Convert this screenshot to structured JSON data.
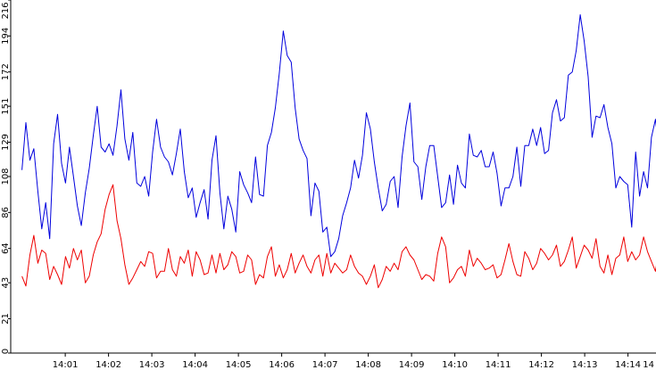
{
  "chart_data": {
    "type": "line",
    "grid": false,
    "legend": "none",
    "ylim": [
      0,
      216
    ],
    "y_ticks": [
      "0",
      "21",
      "43",
      "64",
      "86",
      "108",
      "129",
      "151",
      "172",
      "194",
      "216"
    ],
    "x_ticks": [
      "14:01",
      "14:02",
      "14:03",
      "14:04",
      "14:05",
      "14:06",
      "14:07",
      "14:08",
      "14:09",
      "14:10",
      "14:11",
      "14:12",
      "14:13",
      "14:14",
      "14"
    ],
    "series": [
      {
        "color": "#0000dd",
        "x_range_min": [
          0.0,
          15.0
        ],
        "values": [
          112,
          141,
          118,
          125,
          99,
          76,
          92,
          70,
          128,
          146,
          116,
          104,
          126,
          108,
          90,
          78,
          98,
          113,
          133,
          151,
          126,
          123,
          128,
          121,
          139,
          161,
          131,
          118,
          135,
          104,
          102,
          108,
          96,
          123,
          143,
          126,
          120,
          117,
          109,
          122,
          137,
          111,
          95,
          101,
          83,
          92,
          100,
          82,
          118,
          133,
          98,
          76,
          96,
          88,
          74,
          111,
          103,
          98,
          92,
          120,
          97,
          96,
          127,
          135,
          150,
          171,
          197,
          182,
          178,
          150,
          131,
          124,
          119,
          84,
          104,
          99,
          74,
          77,
          59,
          62,
          70,
          84,
          92,
          101,
          118,
          107,
          121,
          147,
          137,
          117,
          101,
          87,
          91,
          105,
          108,
          89,
          120,
          139,
          153,
          117,
          114,
          94,
          114,
          127,
          127,
          108,
          89,
          92,
          109,
          91,
          115,
          104,
          101,
          134,
          121,
          120,
          124,
          114,
          114,
          123,
          110,
          90,
          101,
          101,
          108,
          126,
          102,
          127,
          127,
          137,
          127,
          138,
          122,
          124,
          147,
          155,
          142,
          144,
          170,
          172,
          185,
          207,
          191,
          169,
          132,
          145,
          144,
          152,
          138,
          128,
          101,
          108,
          105,
          103,
          77,
          123,
          96,
          111,
          101,
          132,
          143,
          122,
          179,
          174,
          165
        ]
      },
      {
        "color": "#ee0000",
        "x_range_min": [
          0.0,
          15.0
        ],
        "values": [
          47,
          41,
          60,
          72,
          55,
          63,
          61,
          45,
          53,
          48,
          42,
          59,
          52,
          64,
          57,
          63,
          43,
          47,
          60,
          68,
          73,
          88,
          97,
          103,
          81,
          70,
          54,
          42,
          46,
          51,
          56,
          53,
          62,
          61,
          46,
          50,
          50,
          64,
          51,
          47,
          59,
          55,
          63,
          47,
          62,
          57,
          48,
          49,
          60,
          49,
          61,
          51,
          54,
          62,
          59,
          49,
          50,
          60,
          57,
          42,
          48,
          46,
          59,
          65,
          47,
          54,
          46,
          51,
          61,
          49,
          55,
          60,
          53,
          49,
          57,
          60,
          47,
          61,
          49,
          55,
          52,
          49,
          51,
          60,
          53,
          49,
          47,
          42,
          47,
          54,
          40,
          45,
          53,
          50,
          55,
          51,
          62,
          65,
          60,
          57,
          51,
          45,
          48,
          47,
          44,
          61,
          71,
          65,
          43,
          46,
          51,
          53,
          47,
          63,
          53,
          58,
          55,
          51,
          52,
          54,
          46,
          48,
          57,
          67,
          56,
          48,
          47,
          62,
          58,
          51,
          55,
          64,
          61,
          57,
          60,
          66,
          53,
          56,
          63,
          71,
          52,
          59,
          66,
          63,
          58,
          70,
          53,
          49,
          60,
          48,
          58,
          60,
          71,
          56,
          62,
          57,
          60,
          71,
          62,
          56,
          50,
          65,
          57,
          64,
          63
        ]
      }
    ]
  }
}
